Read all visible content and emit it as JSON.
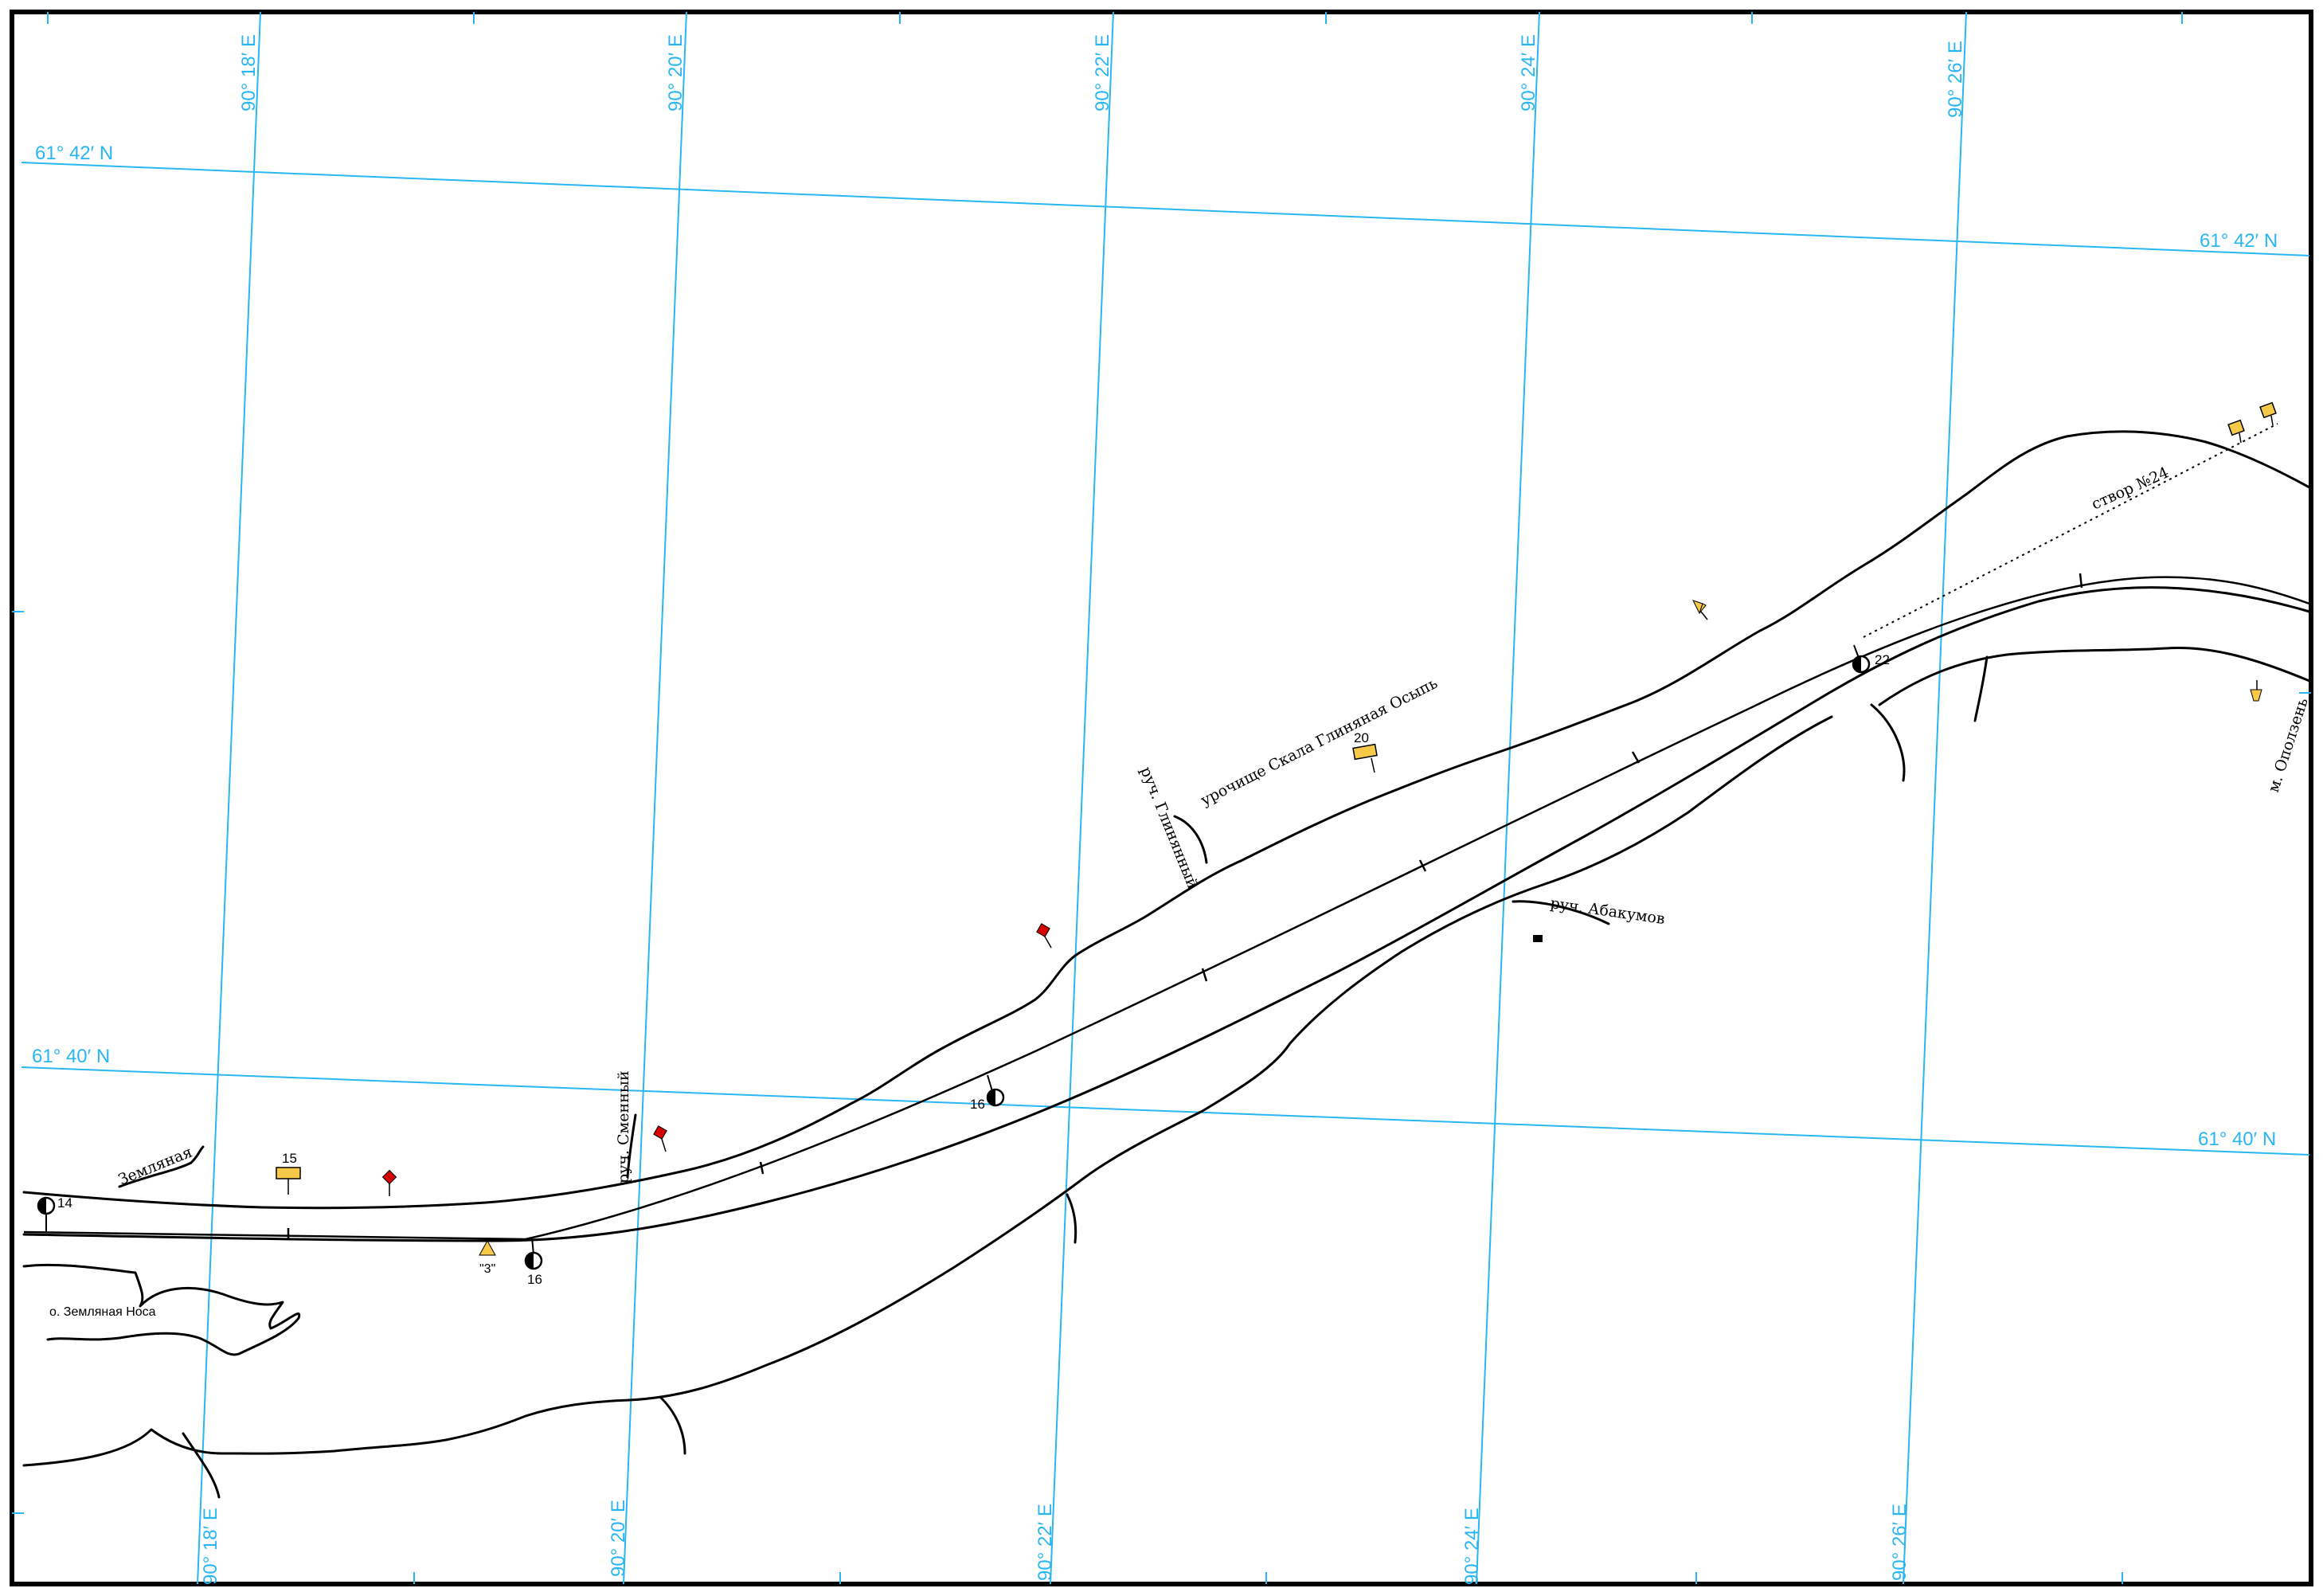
{
  "grid": {
    "lon": [
      "90° 18′ E",
      "90° 20′ E",
      "90° 22′ E",
      "90° 24′ E",
      "90° 26′ E"
    ],
    "lat": [
      "61° 42′ N",
      "61° 40′ N"
    ]
  },
  "places": {
    "zemlyanaya": "Земляная",
    "o_zemlyanaya_nosa": "о. Земляная Носа",
    "ruch_smenny": "руч. Сменный",
    "ruch_glinyany": "руч. Глинянный",
    "urochishche": "урочище Скала Глиняная Осыпь",
    "ruch_abakumov": "руч. Абакумов",
    "m_opolzen": "м. Оползень",
    "stvor": "створ №24"
  },
  "marks": {
    "b14": "14",
    "k15": "15",
    "tri3": "\"3\"",
    "b16a": "16",
    "b16b": "16",
    "k20": "20",
    "b22": "22"
  },
  "colors": {
    "grid": "#29b6f2",
    "shore": "#000000",
    "yellow_buoy": "#f7c948",
    "red_buoy": "#d40000"
  }
}
